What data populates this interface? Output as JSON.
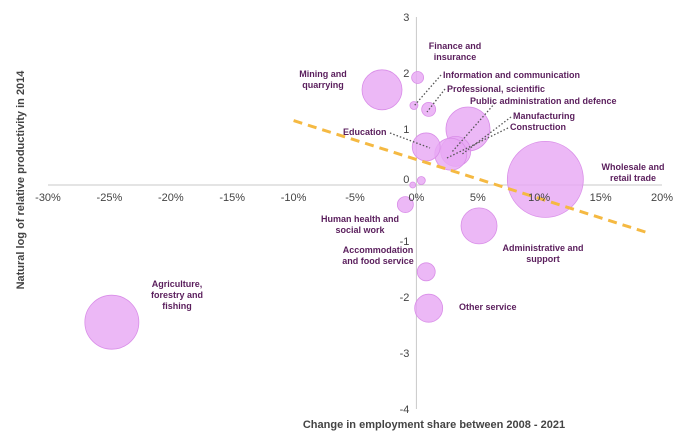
{
  "chart_data": {
    "type": "bubble",
    "title": "",
    "xlabel": "Change in employment share between 2008 - 2021",
    "ylabel": "Natural log of relative productivity in 2014",
    "xlim": [
      -30,
      20
    ],
    "ylim": [
      -4,
      3
    ],
    "x_ticks": [
      -30,
      -25,
      -20,
      -15,
      -10,
      -5,
      0,
      5,
      10,
      15,
      20
    ],
    "x_tick_labels": [
      "-30%",
      "-25%",
      "-20%",
      "-15%",
      "-10%",
      "-5%",
      "0%",
      "5%",
      "10%",
      "15%",
      "20%"
    ],
    "y_ticks": [
      -4,
      -3,
      -2,
      -1,
      0,
      1,
      2,
      3
    ],
    "y_tick_labels": [
      "-4",
      "-3",
      "-2",
      "-1",
      "0",
      "1",
      "2",
      "3"
    ],
    "bubble_color": "#e8a8f4",
    "bubble_stroke": "#d98ee8",
    "label_color": "#5a1e5c",
    "trendline": {
      "color": "#f5b942",
      "style": "dashed",
      "x": [
        -10,
        18.8
      ],
      "y": [
        1.15,
        -0.85
      ]
    },
    "points": [
      {
        "name": "Agriculture, forestry and fishing",
        "label_lines": [
          "Agriculture,",
          "forestry and",
          "fishing"
        ],
        "x": -24.8,
        "y": -2.45,
        "size": 27
      },
      {
        "name": "Mining and quarrying",
        "label_lines": [
          "Mining and",
          "quarrying"
        ],
        "x": -2.8,
        "y": 1.7,
        "size": 20
      },
      {
        "name": "Finance and insurance",
        "label_lines": [
          "Finance and",
          "insurance"
        ],
        "x": 0.1,
        "y": 1.92,
        "size": 6
      },
      {
        "name": "Information and communication",
        "label_lines": [
          "Information and communication"
        ],
        "x": -0.2,
        "y": 1.42,
        "size": 4
      },
      {
        "name": "Professional, scientific",
        "label_lines": [
          "Professional, scientific"
        ],
        "x": 1.0,
        "y": 1.35,
        "size": 7
      },
      {
        "name": "Public administration and defence",
        "label_lines": [
          "Public administration and defence"
        ],
        "x": 4.2,
        "y": 1.0,
        "size": 22
      },
      {
        "name": "Manufacturing",
        "label_lines": [
          "Manufacturing"
        ],
        "x": 3.2,
        "y": 0.6,
        "size": 15
      },
      {
        "name": "Construction",
        "label_lines": [
          "Construction"
        ],
        "x": 2.8,
        "y": 0.55,
        "size": 16
      },
      {
        "name": "Education",
        "label_lines": [
          "Education"
        ],
        "x": 0.8,
        "y": 0.68,
        "size": 14
      },
      {
        "name": "Wholesale and retail trade",
        "label_lines": [
          "Wholesale and",
          "retail trade"
        ],
        "x": 10.5,
        "y": 0.1,
        "size": 38
      },
      {
        "name": "Small sector near origin",
        "label_lines": [],
        "x": 0.4,
        "y": 0.08,
        "size": 4
      },
      {
        "name": "Small sector near origin 2",
        "label_lines": [],
        "x": -0.3,
        "y": 0.0,
        "size": 3
      },
      {
        "name": "Human health and social work",
        "label_lines": [
          "Human health and",
          "social work"
        ],
        "x": -0.9,
        "y": -0.35,
        "size": 8
      },
      {
        "name": "Administrative and support",
        "label_lines": [
          "Administrative and",
          "support"
        ],
        "x": 5.1,
        "y": -0.73,
        "size": 18
      },
      {
        "name": "Accommodation and food service",
        "label_lines": [
          "Accommodation",
          "and food service"
        ],
        "x": 0.8,
        "y": -1.55,
        "size": 9
      },
      {
        "name": "Other service",
        "label_lines": [
          "Other service"
        ],
        "x": 1.0,
        "y": -2.2,
        "size": 14
      }
    ]
  }
}
